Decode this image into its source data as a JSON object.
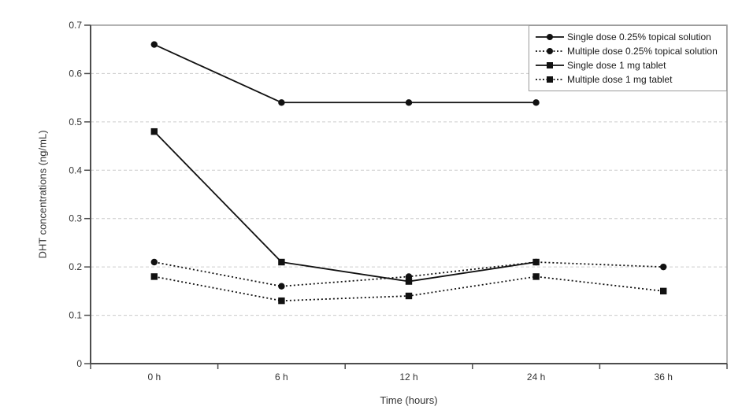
{
  "chart_data": {
    "type": "line",
    "title": "",
    "xlabel": "Time (hours)",
    "ylabel": "DHT concentrations (ng/mL)",
    "categories": [
      "0 h",
      "6 h",
      "12 h",
      "24 h",
      "36 h"
    ],
    "ylim": [
      0,
      0.7
    ],
    "ytick_values": [
      0,
      0.1,
      0.2,
      0.3,
      0.4,
      0.5,
      0.6,
      0.7
    ],
    "ytick_labels": [
      "0",
      "0.1",
      "0.2",
      "0.3",
      "0.4",
      "0.5",
      "0.6",
      "0.7"
    ],
    "grid": "horizontal-dashed",
    "legend_position": "top-right",
    "series": [
      {
        "name": "Single dose 0.25% topical solution",
        "marker": "circle",
        "line": "solid",
        "values": [
          0.66,
          0.54,
          0.54,
          0.54,
          null
        ]
      },
      {
        "name": "Multiple dose 0.25% topical solution",
        "marker": "circle",
        "line": "dotted",
        "values": [
          0.21,
          0.16,
          0.18,
          0.21,
          0.2
        ]
      },
      {
        "name": "Single dose 1 mg tablet",
        "marker": "square",
        "line": "solid",
        "values": [
          0.48,
          0.21,
          0.17,
          0.21,
          null
        ]
      },
      {
        "name": "Multiple dose 1 mg tablet",
        "marker": "square",
        "line": "dotted",
        "values": [
          0.18,
          0.13,
          0.14,
          0.18,
          0.15
        ]
      }
    ],
    "colors": {
      "series": "#111111",
      "frame": "#9a9a9a",
      "axis": "#4d4d4d",
      "grid": "#cccccc",
      "text": "#333333",
      "background": "#ffffff"
    }
  }
}
